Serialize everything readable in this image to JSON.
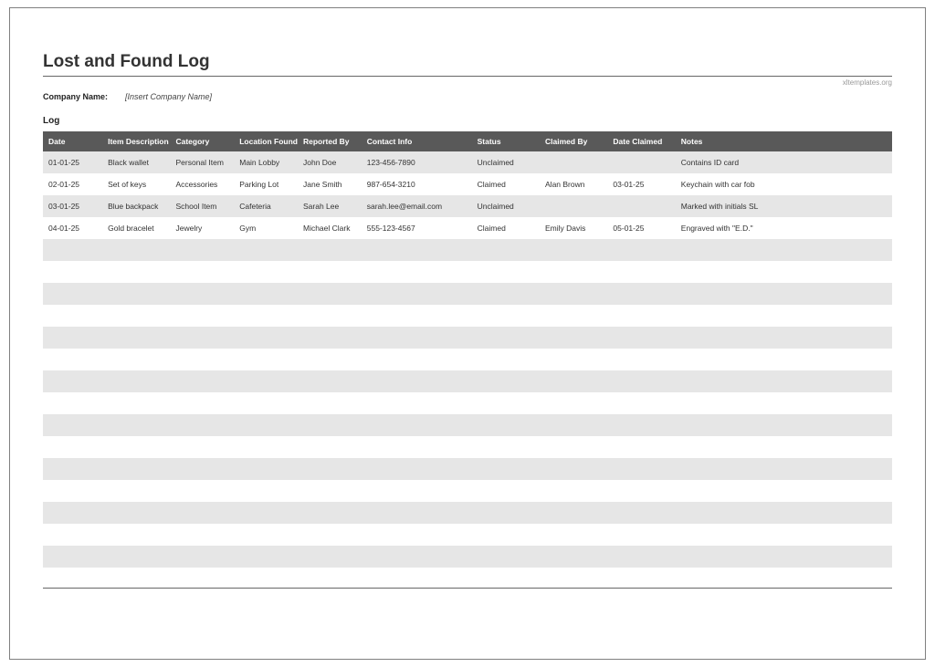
{
  "title": "Lost and Found Log",
  "watermark": "xltemplates.org",
  "company_label": "Company Name:",
  "company_value": "[Insert Company Name]",
  "section_label": "Log",
  "columns": [
    "Date",
    "Item Description",
    "Category",
    "Location Found",
    "Reported By",
    "Contact Info",
    "Status",
    "Claimed By",
    "Date Claimed",
    "Notes"
  ],
  "rows": [
    [
      "01-01-25",
      "Black wallet",
      "Personal Item",
      "Main Lobby",
      "John Doe",
      "123-456-7890",
      "Unclaimed",
      "",
      "",
      "Contains ID card"
    ],
    [
      "02-01-25",
      "Set of keys",
      "Accessories",
      "Parking Lot",
      "Jane Smith",
      "987-654-3210",
      "Claimed",
      "Alan Brown",
      "03-01-25",
      "Keychain with car fob"
    ],
    [
      "03-01-25",
      "Blue backpack",
      "School Item",
      "Cafeteria",
      "Sarah Lee",
      "sarah.lee@email.com",
      "Unclaimed",
      "",
      "",
      "Marked with initials SL"
    ],
    [
      "04-01-25",
      "Gold bracelet",
      "Jewelry",
      "Gym",
      "Michael Clark",
      "555-123-4567",
      "Claimed",
      "Emily Davis",
      "05-01-25",
      "Engraved with \"E.D.\""
    ]
  ],
  "empty_row_count": 15,
  "styling": {
    "header_bg": "#595959",
    "header_text": "#ffffff",
    "row_odd_bg": "#e6e6e6",
    "row_even_bg": "#ffffff",
    "text_color": "#333333",
    "title_fontsize": 19,
    "body_fontsize": 8.5,
    "frame_border": "#808080",
    "rule_color": "#666666"
  }
}
